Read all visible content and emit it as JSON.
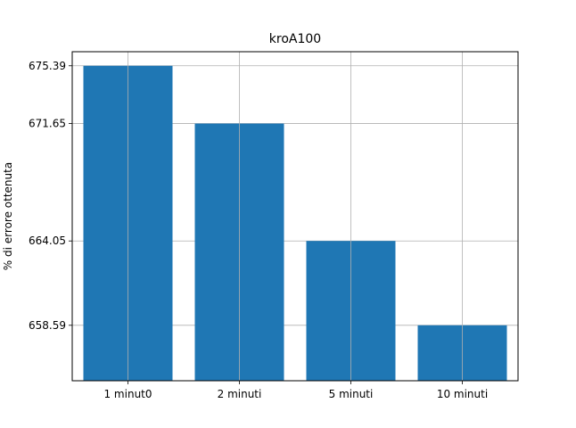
{
  "chart_data": {
    "type": "bar",
    "title": "kroA100",
    "xlabel": "",
    "ylabel": "% di errore ottenuta",
    "categories": [
      "1 minut0",
      "2 minuti",
      "5 minuti",
      "10 minuti"
    ],
    "values": [
      675.39,
      671.65,
      664.05,
      658.59
    ],
    "yticks": [
      "675.39",
      "671.65",
      "664.05",
      "658.59"
    ],
    "ylim": [
      655.0,
      676.3
    ],
    "grid": true,
    "bar_color": "#1f77b4",
    "grid_color": "#b0b0b0"
  }
}
